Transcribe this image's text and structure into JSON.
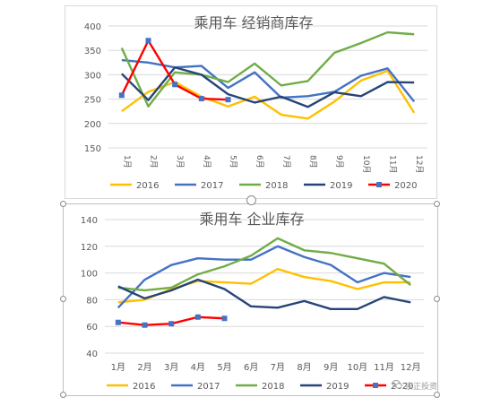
{
  "chart_data": [
    {
      "type": "line",
      "title": "乘用车 经销商库存",
      "categories": [
        "1月",
        "2月",
        "3月",
        "4月",
        "5月",
        "6月",
        "7月",
        "8月",
        "9月",
        "10月",
        "11月",
        "12月"
      ],
      "ylim": [
        150,
        400
      ],
      "yticks": [
        150,
        200,
        250,
        300,
        350,
        400
      ],
      "grid": true,
      "legend_position": "bottom",
      "xtick_rotation": "vertical",
      "series": [
        {
          "name": "2016",
          "color": "#ffc000",
          "values": [
            225,
            265,
            285,
            255,
            235,
            255,
            218,
            210,
            245,
            288,
            308,
            222
          ]
        },
        {
          "name": "2017",
          "color": "#4472c4",
          "values": [
            330,
            325,
            315,
            318,
            273,
            305,
            253,
            256,
            265,
            298,
            313,
            245
          ]
        },
        {
          "name": "2018",
          "color": "#70ad47",
          "values": [
            355,
            235,
            305,
            300,
            285,
            323,
            278,
            287,
            345,
            365,
            387,
            383
          ]
        },
        {
          "name": "2019",
          "color": "#264478",
          "values": [
            302,
            248,
            315,
            300,
            260,
            243,
            255,
            234,
            264,
            256,
            285,
            284
          ]
        },
        {
          "name": "2020",
          "color": "#ff0000",
          "marker_color": "#4472c4",
          "values": [
            258,
            370,
            280,
            251,
            249,
            null,
            null,
            null,
            null,
            null,
            null,
            null
          ]
        }
      ]
    },
    {
      "type": "line",
      "title": "乘用车 企业库存",
      "categories": [
        "1月",
        "2月",
        "3月",
        "4月",
        "5月",
        "6月",
        "7月",
        "8月",
        "9月",
        "10月",
        "11月",
        "12月"
      ],
      "ylim": [
        40,
        140
      ],
      "yticks": [
        40,
        60,
        80,
        100,
        120,
        140
      ],
      "grid": true,
      "legend_position": "bottom",
      "xtick_rotation": "horizontal",
      "series": [
        {
          "name": "2016",
          "color": "#ffc000",
          "values": [
            78,
            80,
            88,
            94,
            93,
            92,
            103,
            97,
            94,
            88,
            93,
            93
          ]
        },
        {
          "name": "2017",
          "color": "#4472c4",
          "values": [
            74,
            95,
            106,
            111,
            110,
            110,
            120,
            112,
            106,
            93,
            100,
            97
          ]
        },
        {
          "name": "2018",
          "color": "#70ad47",
          "values": [
            89,
            87,
            89,
            99,
            105,
            113,
            126,
            117,
            115,
            111,
            107,
            91
          ]
        },
        {
          "name": "2019",
          "color": "#264478",
          "values": [
            90,
            81,
            87,
            95,
            88,
            75,
            74,
            79,
            73,
            73,
            82,
            78
          ]
        },
        {
          "name": "2020",
          "color": "#ff0000",
          "marker_color": "#4472c4",
          "values": [
            63,
            61,
            62,
            67,
            66,
            null,
            null,
            null,
            null,
            null,
            null,
            null
          ]
        }
      ]
    }
  ],
  "watermark": {
    "text": "崇正投资",
    "icon": "wechat-icon"
  }
}
